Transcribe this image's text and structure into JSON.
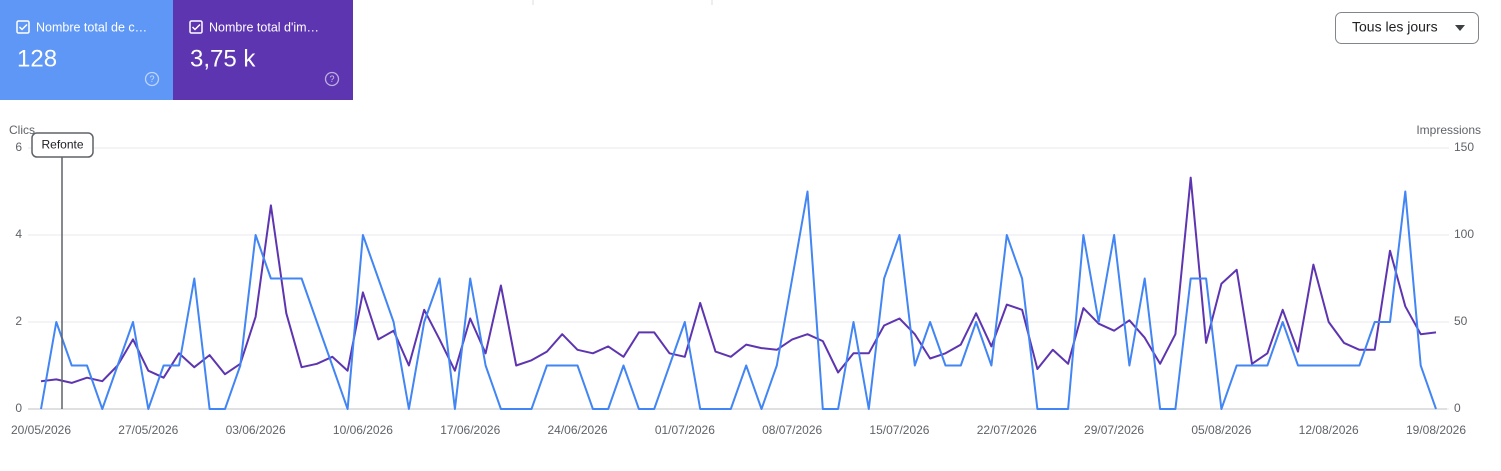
{
  "dropdown": "Tous les jours",
  "chart_data": {
    "type": "line",
    "ylabel": "Clics",
    "y2label": "Impressions",
    "annotation": "Refonte",
    "categories": [
      "20/05/2026",
      null,
      null,
      null,
      null,
      null,
      null,
      "27/05/2026",
      null,
      null,
      null,
      null,
      null,
      null,
      "03/06/2026",
      null,
      null,
      null,
      null,
      null,
      null,
      "10/06/2026",
      null,
      null,
      null,
      null,
      null,
      null,
      "17/06/2026",
      null,
      null,
      null,
      null,
      null,
      null,
      "24/06/2026",
      null,
      null,
      null,
      null,
      null,
      null,
      "01/07/2026",
      null,
      null,
      null,
      null,
      null,
      null,
      "08/07/2026",
      null,
      null,
      null,
      null,
      null,
      null,
      "15/07/2026",
      null,
      null,
      null,
      null,
      null,
      null,
      "22/07/2026",
      null,
      null,
      null,
      null,
      null,
      null,
      "29/07/2026",
      null,
      null,
      null,
      null,
      null,
      null,
      "05/08/2026",
      null,
      null,
      null,
      null,
      null,
      null,
      "12/08/2026",
      null,
      null,
      null,
      null,
      null,
      null,
      "19/08/2026"
    ],
    "series": [
      {
        "name": "Nombre total de c…",
        "total": "128",
        "color": "#4285f4",
        "card_color": "#5e97f6",
        "values": [
          0,
          2,
          1,
          1,
          0,
          1,
          2,
          0,
          1,
          1,
          3,
          0,
          0,
          1,
          4,
          3,
          3,
          3,
          2,
          1,
          0,
          4,
          3,
          2,
          0,
          2,
          3,
          0,
          3,
          1,
          0,
          0,
          0,
          1,
          1,
          1,
          0,
          0,
          1,
          0,
          0,
          1,
          2,
          0,
          0,
          0,
          1,
          0,
          1,
          3,
          5,
          0,
          0,
          2,
          0,
          3,
          4,
          1,
          2,
          1,
          1,
          2,
          1,
          4,
          3,
          0,
          0,
          0,
          4,
          2,
          4,
          1,
          3,
          0,
          0,
          3,
          3,
          0,
          1,
          1,
          1,
          2,
          1,
          1,
          1,
          1,
          1,
          2,
          2,
          5,
          1,
          0
        ]
      },
      {
        "name": "Nombre total d'im…",
        "total": "3,75 k",
        "color": "#5e35b1",
        "card_color": "#5e35b1",
        "axis": "y2",
        "values": [
          16,
          17,
          15,
          18,
          16,
          25,
          40,
          22,
          18,
          32,
          24,
          31,
          20,
          26,
          53,
          117,
          55,
          24,
          26,
          30,
          22,
          67,
          40,
          45,
          25,
          57,
          40,
          22,
          52,
          32,
          71,
          25,
          28,
          33,
          43,
          34,
          32,
          36,
          30,
          44,
          44,
          32,
          30,
          61,
          33,
          30,
          37,
          35,
          34,
          40,
          43,
          39,
          21,
          32,
          32,
          48,
          52,
          43,
          29,
          32,
          37,
          55,
          36,
          60,
          57,
          23,
          34,
          26,
          58,
          49,
          45,
          51,
          41,
          26,
          43,
          133,
          38,
          72,
          80,
          26,
          32,
          57,
          33,
          83,
          50,
          38,
          34,
          34,
          91,
          59,
          43,
          44
        ]
      }
    ],
    "ylim": [
      0,
      6
    ],
    "yticks": [
      0,
      2,
      4,
      6
    ],
    "y2lim": [
      0,
      150
    ],
    "y2ticks": [
      0,
      50,
      100,
      150
    ],
    "grid": true
  }
}
